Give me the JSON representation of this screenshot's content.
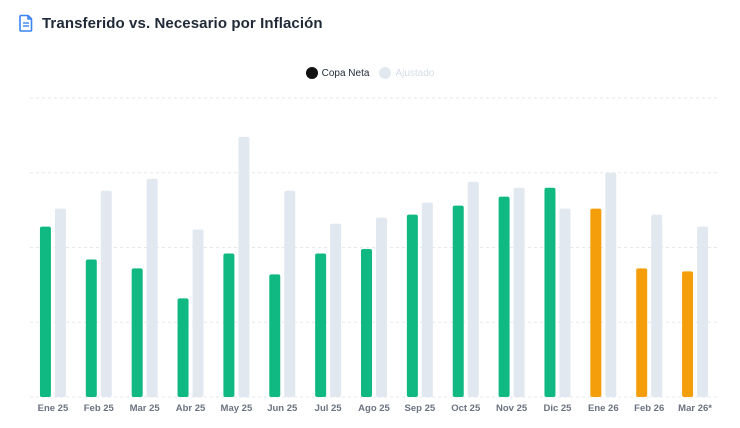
{
  "header": {
    "title": "Transferido vs. Necesario por Inflación",
    "icon": "document-icon"
  },
  "legend": [
    {
      "label": "Copa Neta",
      "color": "#111111",
      "muted": false
    },
    {
      "label": "Ajustado",
      "color": "#e2e8f0",
      "muted": true
    }
  ],
  "colors": {
    "actual": "#10b981",
    "forecast": "#f59e0b",
    "adjusted": "#e2e8f0",
    "grid": "#e5e7eb",
    "tick": "#6b7280"
  },
  "chart_data": {
    "type": "bar",
    "title": "Transferido vs. Necesario por Inflación",
    "xlabel": "",
    "ylabel": "",
    "ylim": [
      0,
      100
    ],
    "grid": true,
    "legend_position": "top-center",
    "categories": [
      "Ene 25",
      "Feb 25",
      "Mar 25",
      "Abr 25",
      "May 25",
      "Jun 25",
      "Jul 25",
      "Ago 25",
      "Sep 25",
      "Oct 25",
      "Nov 25",
      "Dic 25",
      "Ene 26",
      "Feb 26",
      "Mar 26*"
    ],
    "series": [
      {
        "name": "Copa Neta",
        "values": [
          57,
          46,
          43,
          33,
          48,
          41,
          48,
          49.5,
          61,
          64,
          67,
          70,
          63,
          43,
          42
        ],
        "forecast_from_index": 12
      },
      {
        "name": "Ajustado",
        "values": [
          63,
          69,
          73,
          56,
          87,
          69,
          58,
          60,
          65,
          72,
          70,
          63,
          75,
          61,
          57
        ]
      }
    ]
  }
}
